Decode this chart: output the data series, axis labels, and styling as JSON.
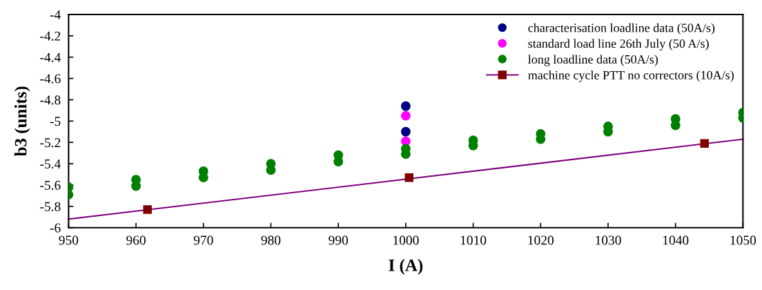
{
  "chart_data": {
    "type": "scatter",
    "xlabel": "I (A)",
    "ylabel": "b3 (units)",
    "xlim": [
      950,
      1050
    ],
    "xticks": [
      950,
      960,
      970,
      980,
      990,
      1000,
      1010,
      1020,
      1030,
      1040,
      1050
    ],
    "ylim": [
      -6,
      -4
    ],
    "yticks": [
      -6,
      -5.8,
      -5.6,
      -5.4,
      -5.2,
      -5,
      -4.8,
      -4.6,
      -4.4,
      -4.2,
      -4
    ],
    "grid": false,
    "legend": "top right",
    "series": [
      {
        "name": "characterisation loadline data (50A/s)",
        "color": "#000080",
        "marker": "circle",
        "x": [
          1000,
          1000
        ],
        "values": [
          -4.86,
          -5.1
        ]
      },
      {
        "name": "standard load line 26th July (50 A/s)",
        "color": "#ff00ff",
        "marker": "circle",
        "x": [
          1000,
          1000
        ],
        "values": [
          -4.95,
          -5.19
        ]
      },
      {
        "name": "long loadline data (50A/s)",
        "color": "#008000",
        "marker": "circle",
        "x": [
          950,
          950,
          960,
          960,
          970,
          970,
          980,
          980,
          990,
          990,
          1000,
          1000,
          1010,
          1010,
          1020,
          1020,
          1030,
          1030,
          1040,
          1040,
          1050,
          1050
        ],
        "values": [
          -5.62,
          -5.69,
          -5.55,
          -5.61,
          -5.47,
          -5.53,
          -5.4,
          -5.46,
          -5.32,
          -5.38,
          -5.26,
          -5.31,
          -5.18,
          -5.23,
          -5.12,
          -5.17,
          -5.05,
          -5.1,
          -4.98,
          -5.04,
          -4.92,
          -4.97
        ]
      },
      {
        "name": "machine cycle PTT no correctors (10A/s)",
        "color": "#800000",
        "marker": "square",
        "x": [
          961.7,
          1000.5,
          1044.3
        ],
        "values": [
          -5.83,
          -5.53,
          -5.21
        ]
      },
      {
        "color": "#800080",
        "type": "line",
        "marker": "none",
        "line_style": "solid",
        "x": [
          950,
          1050
        ],
        "values": [
          -5.92,
          -5.17
        ]
      }
    ]
  }
}
